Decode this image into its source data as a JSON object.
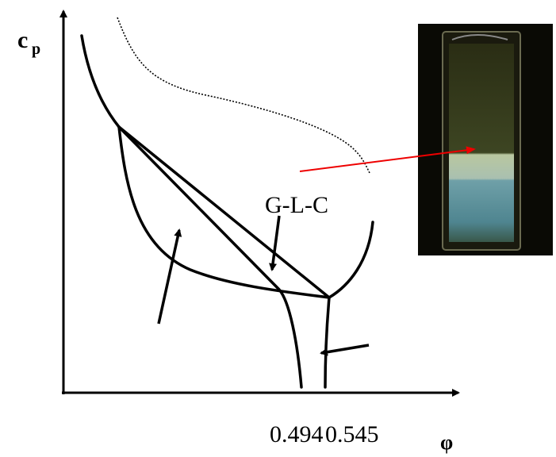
{
  "axes": {
    "y_label": "c",
    "y_label_sub": "p",
    "x_label": "φ"
  },
  "region_label": "G-L-C",
  "x_markers": [
    "0.494",
    "0.545"
  ]
}
